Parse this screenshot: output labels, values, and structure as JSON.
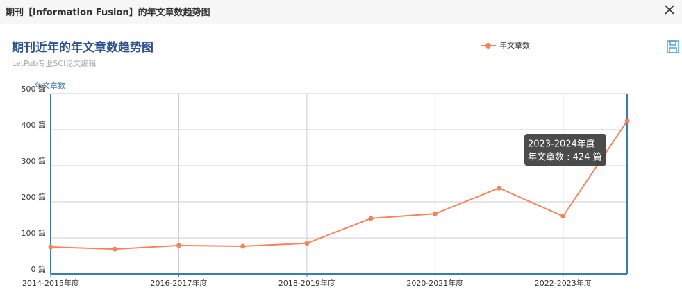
{
  "header": {
    "title": "期刊【Information Fusion】的年文章数趋势图"
  },
  "chart_data": {
    "type": "line",
    "title": "期刊近年的年文章数趋势图",
    "subtitle": "LetPub专业SCI论文编辑",
    "y_label": "年文章数",
    "categories": [
      "2014-2015年度",
      null,
      "2016-2017年度",
      null,
      "2018-2019年度",
      null,
      "2020-2021年度",
      null,
      "2022-2023年度",
      null
    ],
    "series": [
      {
        "name": "年文章数",
        "color": "#f5845a",
        "values": [
          75,
          69,
          79,
          77,
          85,
          154,
          167,
          238,
          160,
          424
        ]
      }
    ],
    "ylim": [
      0,
      500
    ],
    "yticks": [
      {
        "value": 0,
        "label": "0 篇"
      },
      {
        "value": 100,
        "label": "100 篇"
      },
      {
        "value": 200,
        "label": "200 篇"
      },
      {
        "value": 300,
        "label": "300 篇"
      },
      {
        "value": 400,
        "label": "400 篇"
      },
      {
        "value": 500,
        "label": "500 篇"
      }
    ],
    "grid": true,
    "legend": "top",
    "tooltip": {
      "title": "2023-2024年度",
      "text": "年文章数 : 424 篇"
    }
  }
}
